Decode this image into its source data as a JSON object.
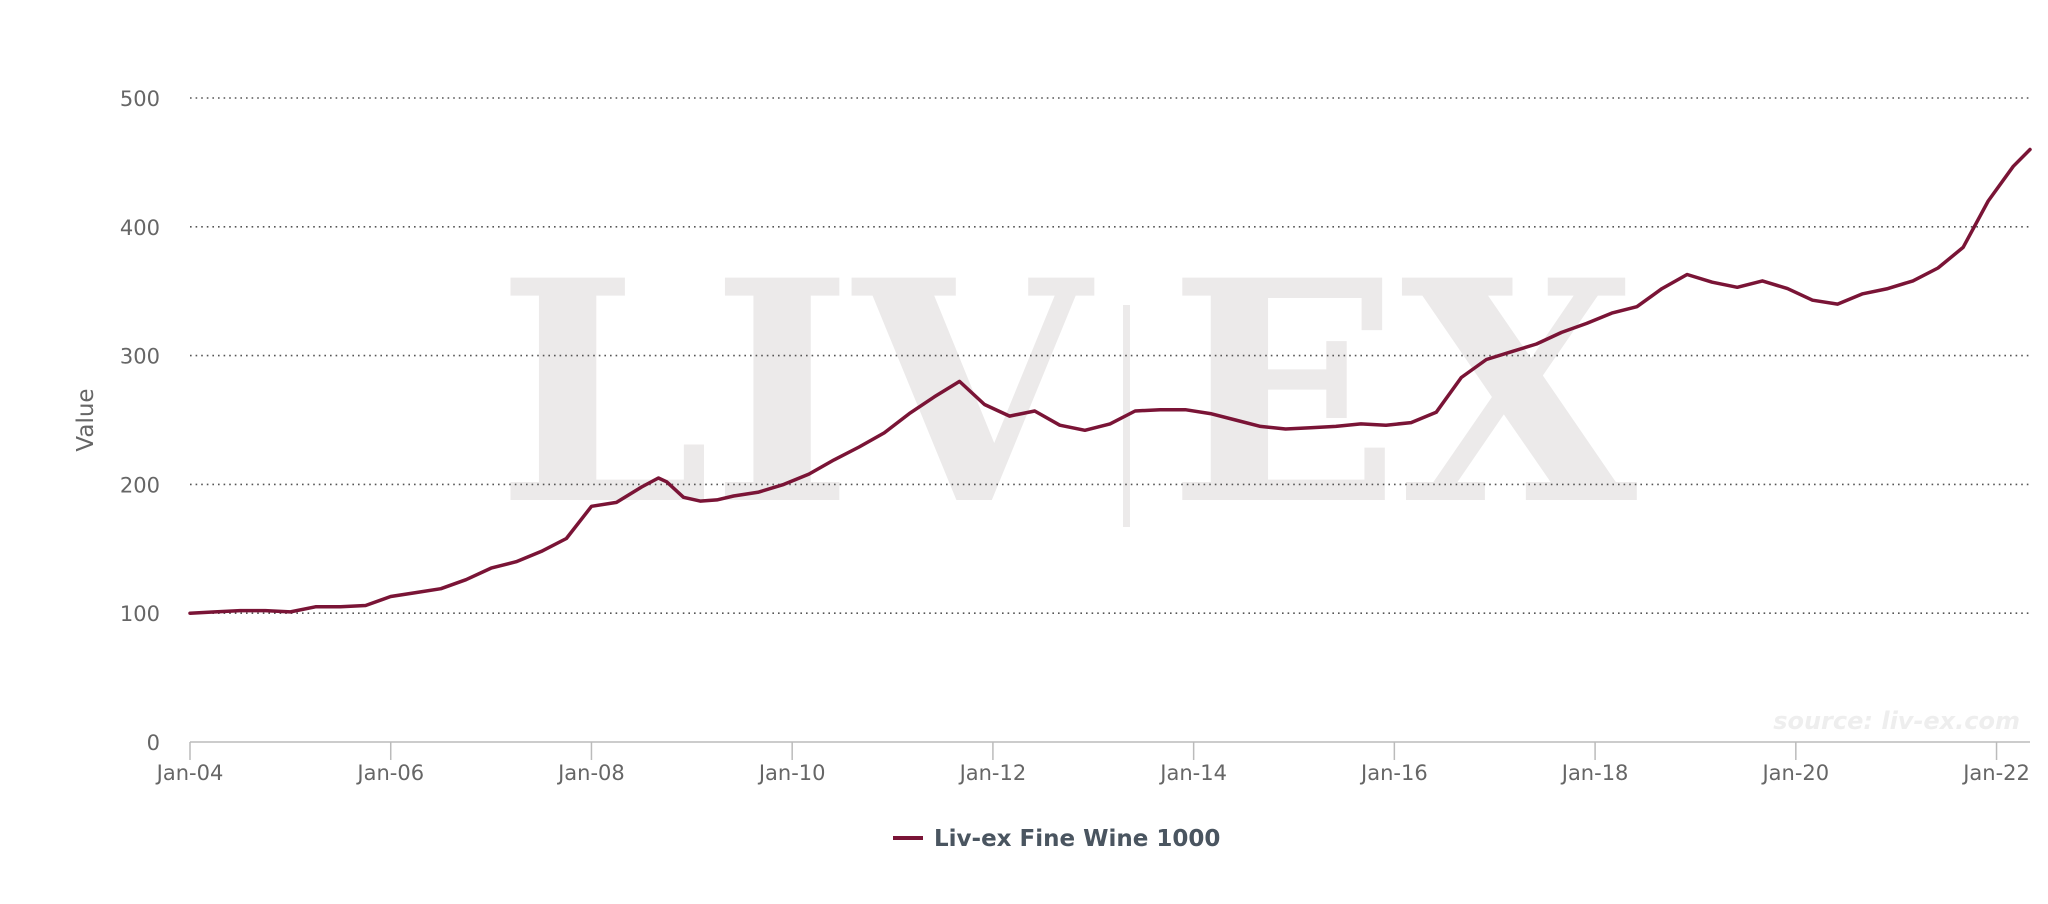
{
  "chart_data": {
    "type": "line",
    "title": "",
    "xlabel": "",
    "ylabel": "Value",
    "ylim": [
      0,
      500
    ],
    "xlim": [
      "2004-01",
      "2022-05"
    ],
    "yticks": [
      "0",
      "100",
      "200",
      "300",
      "400",
      "500"
    ],
    "xticks": [
      {
        "date": "2004-01",
        "label": "Jan-04"
      },
      {
        "date": "2006-01",
        "label": "Jan-06"
      },
      {
        "date": "2008-01",
        "label": "Jan-08"
      },
      {
        "date": "2010-01",
        "label": "Jan-10"
      },
      {
        "date": "2012-01",
        "label": "Jan-12"
      },
      {
        "date": "2014-01",
        "label": "Jan-14"
      },
      {
        "date": "2016-01",
        "label": "Jan-16"
      },
      {
        "date": "2018-01",
        "label": "Jan-18"
      },
      {
        "date": "2020-01",
        "label": "Jan-20"
      },
      {
        "date": "2022-01",
        "label": "Jan-22"
      }
    ],
    "grid": {
      "y": true,
      "x": false,
      "style": "dotted"
    },
    "legend": {
      "position": "bottom-center"
    },
    "series": [
      {
        "name": "Liv-ex Fine Wine 1000",
        "color": "#7a1436",
        "points": [
          [
            "2004-01",
            100
          ],
          [
            "2004-04",
            101
          ],
          [
            "2004-07",
            102
          ],
          [
            "2004-10",
            102
          ],
          [
            "2005-01",
            101
          ],
          [
            "2005-04",
            105
          ],
          [
            "2005-07",
            105
          ],
          [
            "2005-10",
            106
          ],
          [
            "2006-01",
            113
          ],
          [
            "2006-04",
            116
          ],
          [
            "2006-07",
            119
          ],
          [
            "2006-10",
            126
          ],
          [
            "2007-01",
            135
          ],
          [
            "2007-04",
            140
          ],
          [
            "2007-07",
            148
          ],
          [
            "2007-10",
            158
          ],
          [
            "2008-01",
            183
          ],
          [
            "2008-04",
            186
          ],
          [
            "2008-07",
            198
          ],
          [
            "2008-09",
            205
          ],
          [
            "2008-10",
            202
          ],
          [
            "2008-12",
            190
          ],
          [
            "2009-02",
            187
          ],
          [
            "2009-04",
            188
          ],
          [
            "2009-06",
            191
          ],
          [
            "2009-09",
            194
          ],
          [
            "2009-12",
            200
          ],
          [
            "2010-03",
            208
          ],
          [
            "2010-06",
            219
          ],
          [
            "2010-09",
            229
          ],
          [
            "2010-12",
            240
          ],
          [
            "2011-03",
            255
          ],
          [
            "2011-06",
            268
          ],
          [
            "2011-09",
            280
          ],
          [
            "2011-12",
            262
          ],
          [
            "2012-03",
            253
          ],
          [
            "2012-06",
            257
          ],
          [
            "2012-09",
            246
          ],
          [
            "2012-12",
            242
          ],
          [
            "2013-03",
            247
          ],
          [
            "2013-06",
            257
          ],
          [
            "2013-09",
            258
          ],
          [
            "2013-12",
            258
          ],
          [
            "2014-03",
            255
          ],
          [
            "2014-06",
            250
          ],
          [
            "2014-09",
            245
          ],
          [
            "2014-12",
            243
          ],
          [
            "2015-03",
            244
          ],
          [
            "2015-06",
            245
          ],
          [
            "2015-09",
            247
          ],
          [
            "2015-12",
            246
          ],
          [
            "2016-03",
            248
          ],
          [
            "2016-06",
            256
          ],
          [
            "2016-09",
            283
          ],
          [
            "2016-12",
            297
          ],
          [
            "2017-03",
            303
          ],
          [
            "2017-06",
            309
          ],
          [
            "2017-09",
            318
          ],
          [
            "2017-12",
            325
          ],
          [
            "2018-03",
            333
          ],
          [
            "2018-06",
            338
          ],
          [
            "2018-09",
            352
          ],
          [
            "2018-12",
            363
          ],
          [
            "2019-03",
            357
          ],
          [
            "2019-06",
            353
          ],
          [
            "2019-09",
            358
          ],
          [
            "2019-12",
            352
          ],
          [
            "2020-03",
            343
          ],
          [
            "2020-06",
            340
          ],
          [
            "2020-09",
            348
          ],
          [
            "2020-12",
            352
          ],
          [
            "2021-03",
            358
          ],
          [
            "2021-06",
            368
          ],
          [
            "2021-09",
            384
          ],
          [
            "2021-12",
            420
          ],
          [
            "2022-03",
            447
          ],
          [
            "2022-05",
            460
          ]
        ]
      }
    ],
    "watermark": {
      "left": "LIV",
      "right": "EX"
    },
    "source": "source: liv-ex.com"
  }
}
